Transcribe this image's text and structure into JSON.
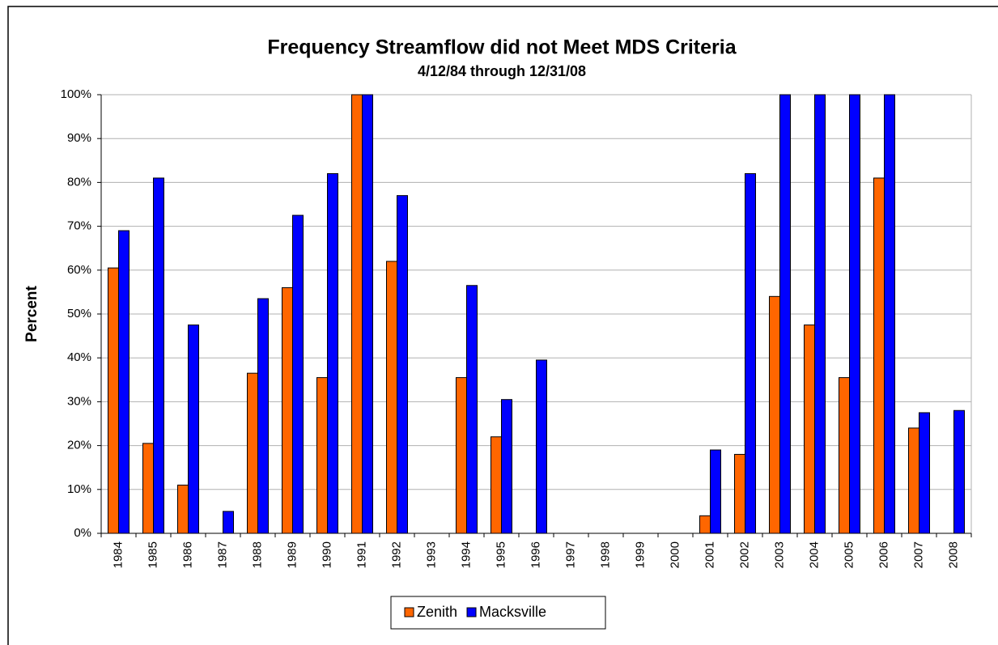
{
  "chart_data": {
    "type": "bar",
    "title": "Frequency Streamflow did not Meet MDS Criteria",
    "subtitle": "4/12/84 through 12/31/08",
    "y_label": "Percent",
    "categories": [
      "1984",
      "1985",
      "1986",
      "1987",
      "1988",
      "1989",
      "1990",
      "1991",
      "1992",
      "1993",
      "1994",
      "1995",
      "1996",
      "1997",
      "1998",
      "1999",
      "2000",
      "2001",
      "2002",
      "2003",
      "2004",
      "2005",
      "2006",
      "2007",
      "2008"
    ],
    "series": [
      {
        "name": "Zenith",
        "color": "#ff6600",
        "values": [
          60.5,
          20.5,
          11,
          0,
          36.5,
          56,
          35.5,
          100,
          62,
          0,
          35.5,
          22,
          0,
          0,
          0,
          0,
          0,
          4,
          18,
          54,
          47.5,
          35.5,
          81,
          24,
          0
        ]
      },
      {
        "name": "Macksville",
        "color": "#0000ff",
        "values": [
          69,
          81,
          47.5,
          5,
          53.5,
          72.5,
          82,
          100,
          77,
          0,
          56.5,
          30.5,
          39.5,
          0,
          0,
          0,
          0,
          19,
          82,
          100,
          100,
          100,
          100,
          27.5,
          28
        ]
      }
    ],
    "ylim": [
      0,
      100
    ],
    "yticks": [
      {
        "value": 0,
        "label": "0%"
      },
      {
        "value": 10,
        "label": "10%"
      },
      {
        "value": 20,
        "label": "20%"
      },
      {
        "value": 30,
        "label": "30%"
      },
      {
        "value": 40,
        "label": "40%"
      },
      {
        "value": 50,
        "label": "50%"
      },
      {
        "value": 60,
        "label": "60%"
      },
      {
        "value": 70,
        "label": "70%"
      },
      {
        "value": 80,
        "label": "80%"
      },
      {
        "value": 90,
        "label": "90%"
      },
      {
        "value": 100,
        "label": "100%"
      }
    ],
    "grid": true
  }
}
